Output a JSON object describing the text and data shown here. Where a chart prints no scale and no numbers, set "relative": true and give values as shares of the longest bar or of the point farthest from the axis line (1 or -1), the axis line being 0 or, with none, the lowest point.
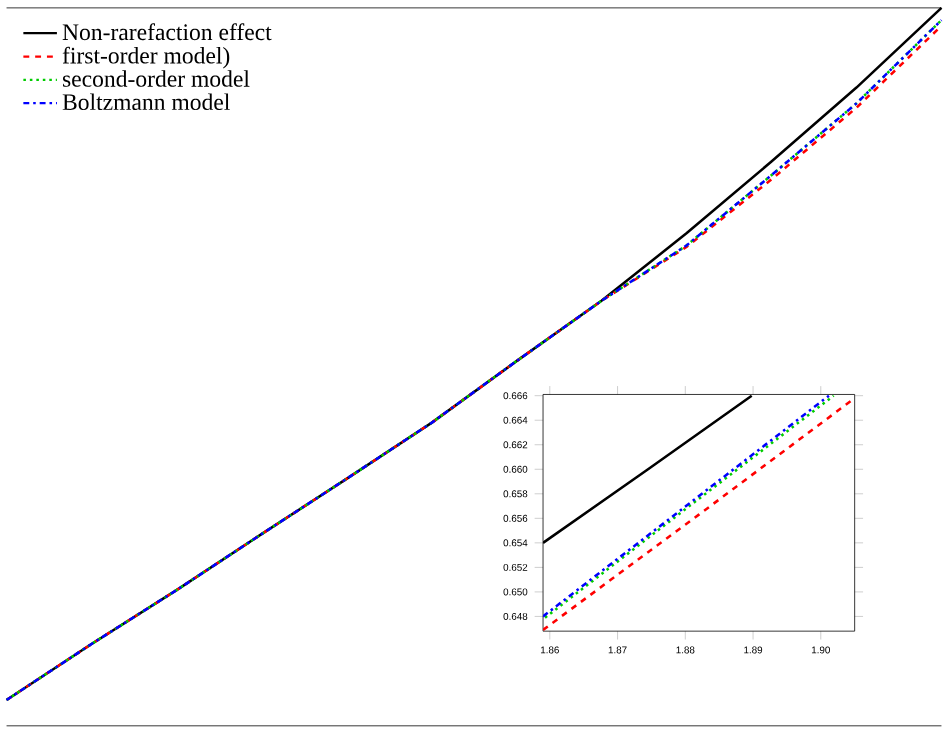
{
  "chart_data": [
    {
      "type": "line",
      "relative": true,
      "legend": "top left",
      "grid": false,
      "categories": [
        null,
        null,
        null,
        null,
        null,
        null,
        null,
        null,
        null,
        null,
        null,
        null
      ],
      "series": [
        {
          "name": "Non-rarefaction effect",
          "color": "#000000",
          "line_style": "solid",
          "values": [
            0.036,
            0.114,
            0.189,
            0.267,
            0.344,
            0.422,
            0.508,
            0.592,
            0.686,
            0.786,
            0.889,
            1.0
          ]
        },
        {
          "name": "first-order model)",
          "color": "#ff0000",
          "line_style": "dashed",
          "values": [
            0.036,
            0.114,
            0.189,
            0.267,
            0.344,
            0.422,
            0.508,
            0.592,
            0.667,
            0.761,
            0.861,
            0.975
          ]
        },
        {
          "name": "second-order model",
          "color": "#00cc00",
          "line_style": "dotted",
          "values": [
            0.036,
            0.114,
            0.189,
            0.267,
            0.344,
            0.422,
            0.508,
            0.592,
            0.669,
            0.767,
            0.867,
            0.983
          ]
        },
        {
          "name": "Boltzmann model",
          "color": "#0000ff",
          "line_style": "dashdot",
          "values": [
            0.036,
            0.114,
            0.189,
            0.267,
            0.344,
            0.422,
            0.508,
            0.592,
            0.669,
            0.767,
            0.867,
            0.983
          ]
        }
      ]
    },
    {
      "type": "line",
      "xlim": [
        1.859,
        1.905
      ],
      "ylim": [
        0.6468,
        0.6661
      ],
      "xticks": [
        {
          "value": 1.86,
          "label": "1.86"
        },
        {
          "value": 1.87,
          "label": "1.87"
        },
        {
          "value": 1.88,
          "label": "1.88"
        },
        {
          "value": 1.89,
          "label": "1.89"
        },
        {
          "value": 1.9,
          "label": "1.90"
        }
      ],
      "yticks": [
        {
          "value": 0.648,
          "label": "0.648"
        },
        {
          "value": 0.65,
          "label": "0.650"
        },
        {
          "value": 0.652,
          "label": "0.652"
        },
        {
          "value": 0.654,
          "label": "0.654"
        },
        {
          "value": 0.656,
          "label": "0.656"
        },
        {
          "value": 0.658,
          "label": "0.658"
        },
        {
          "value": 0.66,
          "label": "0.660"
        },
        {
          "value": 0.662,
          "label": "0.662"
        },
        {
          "value": 0.664,
          "label": "0.664"
        },
        {
          "value": 0.666,
          "label": "0.666"
        }
      ],
      "series": [
        {
          "color": "#000000",
          "line_style": "solid",
          "x": [
            1.859,
            1.8745,
            1.8898
          ],
          "values": [
            0.654,
            0.66,
            0.666
          ]
        },
        {
          "color": "#ff0000",
          "line_style": "dashed",
          "x": [
            1.859,
            1.882,
            1.905
          ],
          "values": [
            0.6469,
            0.6563,
            0.6658
          ]
        },
        {
          "color": "#00cc00",
          "line_style": "dotted",
          "x": [
            1.8593,
            1.8806,
            1.9019
          ],
          "values": [
            0.6479,
            0.657,
            0.666
          ]
        },
        {
          "color": "#0000ff",
          "line_style": "dashdot",
          "x": [
            1.859,
            1.8801,
            1.9012
          ],
          "values": [
            0.648,
            0.657,
            0.666
          ]
        }
      ]
    }
  ]
}
